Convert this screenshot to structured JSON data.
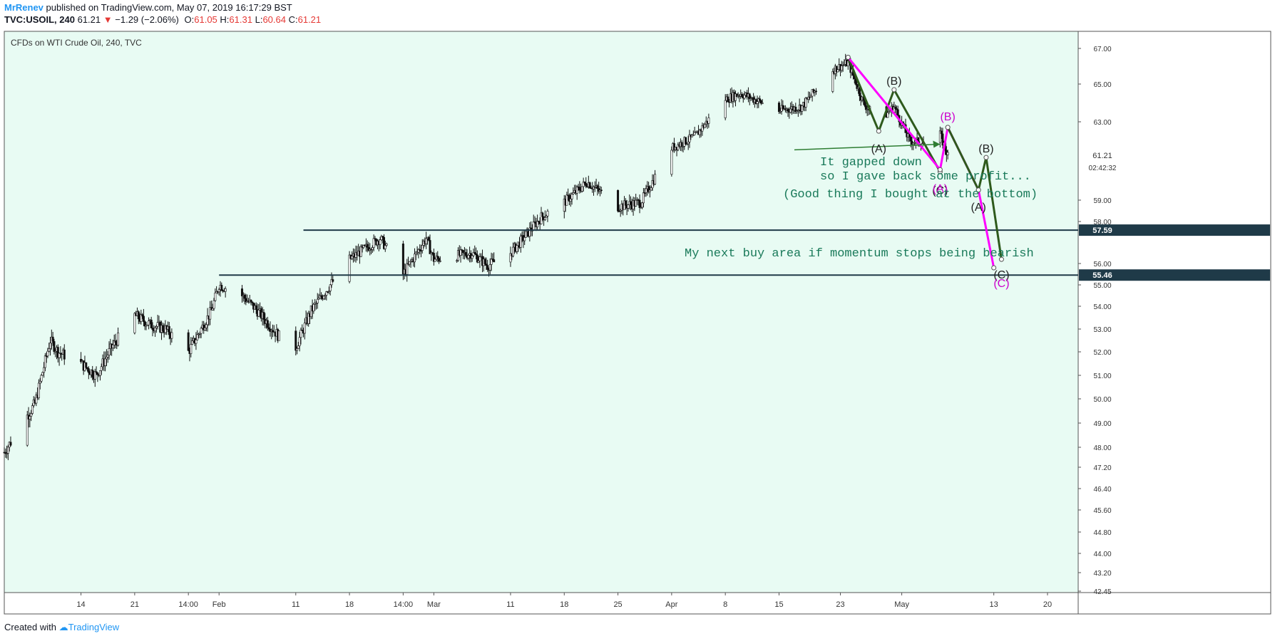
{
  "header": {
    "author": "MrRenev",
    "published": "published on TradingView.com, May 07, 2019 16:17:29 BST",
    "symbol": "TVC:USOIL, 240",
    "last": "61.21",
    "change": "−1.29 (−2.06%)",
    "open_label": "O:",
    "open": "61.05",
    "high_label": "H:",
    "high": "61.31",
    "low_label": "L:",
    "low": "60.64",
    "close_label": "C:",
    "close": "61.21"
  },
  "footer": {
    "created_with": "Created with",
    "brand": "TradingView"
  },
  "chart_data": {
    "type": "candlestick",
    "title": "CFDs on WTI Crude Oil, 240, TVC",
    "y_ticks": [
      "67.00",
      "65.00",
      "63.00",
      "59.00",
      "58.00",
      "56.00",
      "55.00",
      "54.00",
      "53.00",
      "52.00",
      "51.00",
      "50.00",
      "49.00",
      "48.00",
      "47.20",
      "46.40",
      "45.60",
      "44.80",
      "44.00",
      "43.20",
      "42.45"
    ],
    "x_ticks": [
      {
        "label": "14",
        "date": "2019-01-14"
      },
      {
        "label": "21",
        "date": "2019-01-21"
      },
      {
        "label": "14:00",
        "date": "2019-01-28"
      },
      {
        "label": "Feb",
        "date": "2019-02-01"
      },
      {
        "label": "11",
        "date": "2019-02-11"
      },
      {
        "label": "18",
        "date": "2019-02-18"
      },
      {
        "label": "14:00",
        "date": "2019-02-25"
      },
      {
        "label": "Mar",
        "date": "2019-03-01"
      },
      {
        "label": "11",
        "date": "2019-03-11"
      },
      {
        "label": "18",
        "date": "2019-03-18"
      },
      {
        "label": "25",
        "date": "2019-03-25"
      },
      {
        "label": "Apr",
        "date": "2019-04-01"
      },
      {
        "label": "8",
        "date": "2019-04-08"
      },
      {
        "label": "15",
        "date": "2019-04-15"
      },
      {
        "label": "23",
        "date": "2019-04-23"
      },
      {
        "label": "May",
        "date": "2019-05-01"
      },
      {
        "label": "13",
        "date": "2019-05-13"
      },
      {
        "label": "20",
        "date": "2019-05-20"
      }
    ],
    "price_anchors": [
      {
        "date": "2019-01-04",
        "price": 47.8
      },
      {
        "date": "2019-01-08",
        "price": 49.8
      },
      {
        "date": "2019-01-10",
        "price": 52.5
      },
      {
        "date": "2019-01-11",
        "price": 52.0
      },
      {
        "date": "2019-01-14",
        "price": 51.5
      },
      {
        "date": "2019-01-16",
        "price": 51.0
      },
      {
        "date": "2019-01-18",
        "price": 52.2
      },
      {
        "date": "2019-01-21",
        "price": 53.6
      },
      {
        "date": "2019-01-23",
        "price": 53.2
      },
      {
        "date": "2019-01-25",
        "price": 53.0
      },
      {
        "date": "2019-01-28",
        "price": 52.0
      },
      {
        "date": "2019-01-31",
        "price": 53.8
      },
      {
        "date": "2019-02-01",
        "price": 55.0
      },
      {
        "date": "2019-02-04",
        "price": 54.5
      },
      {
        "date": "2019-02-06",
        "price": 53.8
      },
      {
        "date": "2019-02-09",
        "price": 52.6
      },
      {
        "date": "2019-02-11",
        "price": 52.2
      },
      {
        "date": "2019-02-13",
        "price": 53.8
      },
      {
        "date": "2019-02-18",
        "price": 56.2
      },
      {
        "date": "2019-02-22",
        "price": 57.2
      },
      {
        "date": "2019-02-25",
        "price": 55.5
      },
      {
        "date": "2019-02-28",
        "price": 57.2
      },
      {
        "date": "2019-03-01",
        "price": 56.2
      },
      {
        "date": "2019-03-06",
        "price": 56.5
      },
      {
        "date": "2019-03-08",
        "price": 55.9
      },
      {
        "date": "2019-03-11",
        "price": 56.5
      },
      {
        "date": "2019-03-15",
        "price": 58.2
      },
      {
        "date": "2019-03-18",
        "price": 58.9
      },
      {
        "date": "2019-03-21",
        "price": 59.9
      },
      {
        "date": "2019-03-25",
        "price": 58.7
      },
      {
        "date": "2019-03-28",
        "price": 58.9
      },
      {
        "date": "2019-04-01",
        "price": 61.6
      },
      {
        "date": "2019-04-04",
        "price": 62.2
      },
      {
        "date": "2019-04-08",
        "price": 64.2
      },
      {
        "date": "2019-04-10",
        "price": 64.5
      },
      {
        "date": "2019-04-15",
        "price": 63.6
      },
      {
        "date": "2019-04-18",
        "price": 63.8
      },
      {
        "date": "2019-04-22",
        "price": 65.8
      },
      {
        "date": "2019-04-24",
        "price": 66.2
      },
      {
        "date": "2019-04-26",
        "price": 64.0
      },
      {
        "date": "2019-04-28",
        "price": 63.0
      },
      {
        "date": "2019-04-30",
        "price": 63.8
      },
      {
        "date": "2019-05-02",
        "price": 62.0
      },
      {
        "date": "2019-05-05",
        "price": 61.8
      },
      {
        "date": "2019-05-06",
        "price": 62.3
      },
      {
        "date": "2019-05-07",
        "price": 61.2
      }
    ],
    "horizontal_levels": [
      {
        "price": 57.59,
        "label": "57.59",
        "from_date": "2019-02-12"
      },
      {
        "price": 55.46,
        "label": "55.46",
        "from_date": "2019-02-01"
      }
    ],
    "price_labels": {
      "last": "61.21",
      "countdown": "02:42:32"
    },
    "wave_lines": [
      {
        "color": "#2e5a1c",
        "points": [
          {
            "date": "2019-04-24",
            "price": 66.5
          },
          {
            "date": "2019-04-28",
            "price": 62.5
          },
          {
            "date": "2019-04-30",
            "price": 64.7
          },
          {
            "date": "2019-05-06",
            "price": 60.4
          }
        ]
      },
      {
        "color": "#ff00ff",
        "points": [
          {
            "date": "2019-04-24",
            "price": 66.5
          },
          {
            "date": "2019-05-06",
            "price": 60.5
          },
          {
            "date": "2019-05-07",
            "price": 62.7
          },
          {
            "date": "2019-05-11",
            "price": 59.5
          },
          {
            "date": "2019-05-13",
            "price": 55.8
          }
        ]
      },
      {
        "color": "#2e5a1c",
        "points": [
          {
            "date": "2019-05-07",
            "price": 62.7
          },
          {
            "date": "2019-05-11",
            "price": 59.5
          },
          {
            "date": "2019-05-12",
            "price": 61.1
          },
          {
            "date": "2019-05-14",
            "price": 56.2
          }
        ]
      }
    ],
    "wave_labels": [
      {
        "text": "(A)",
        "color": "#222222",
        "date": "2019-04-28",
        "price": 61.6
      },
      {
        "text": "(B)",
        "color": "#222222",
        "date": "2019-04-30",
        "price": 65.2
      },
      {
        "text": "(C)",
        "color": "#222222",
        "date": "2019-05-06",
        "price": 59.5
      },
      {
        "text": "(B)",
        "color": "#cc00cc",
        "date": "2019-05-07",
        "price": 63.3
      },
      {
        "text": "(A)",
        "color": "#cc00cc",
        "date": "2019-05-06",
        "price": 59.6
      },
      {
        "text": "(A)",
        "color": "#222222",
        "date": "2019-05-11",
        "price": 58.7
      },
      {
        "text": "(B)",
        "color": "#222222",
        "date": "2019-05-12",
        "price": 61.6
      },
      {
        "text": "(C)",
        "color": "#222222",
        "date": "2019-05-14",
        "price": 55.5
      },
      {
        "text": "(C)",
        "color": "#cc00cc",
        "date": "2019-05-14",
        "price": 55.1
      }
    ],
    "annotations": [
      {
        "lines": [
          "It gapped down",
          "so I gave back some profit...",
          "(Good thing I bought at the bottom)"
        ],
        "color": "#1a7a5a"
      },
      {
        "lines": [
          "My next buy area if momentum stops being bearish"
        ],
        "color": "#1a7a5a"
      }
    ],
    "arrow": {
      "from_date": "2019-04-17",
      "from_price": 61.5,
      "to_date": "2019-05-06",
      "to_price": 61.8,
      "color": "#2e7d32"
    },
    "colors": {
      "background": "#e8fbf3",
      "level_line": "#1f3a48",
      "level_label_bg": "#1f3a48",
      "text_green": "#1a7a5a"
    }
  }
}
